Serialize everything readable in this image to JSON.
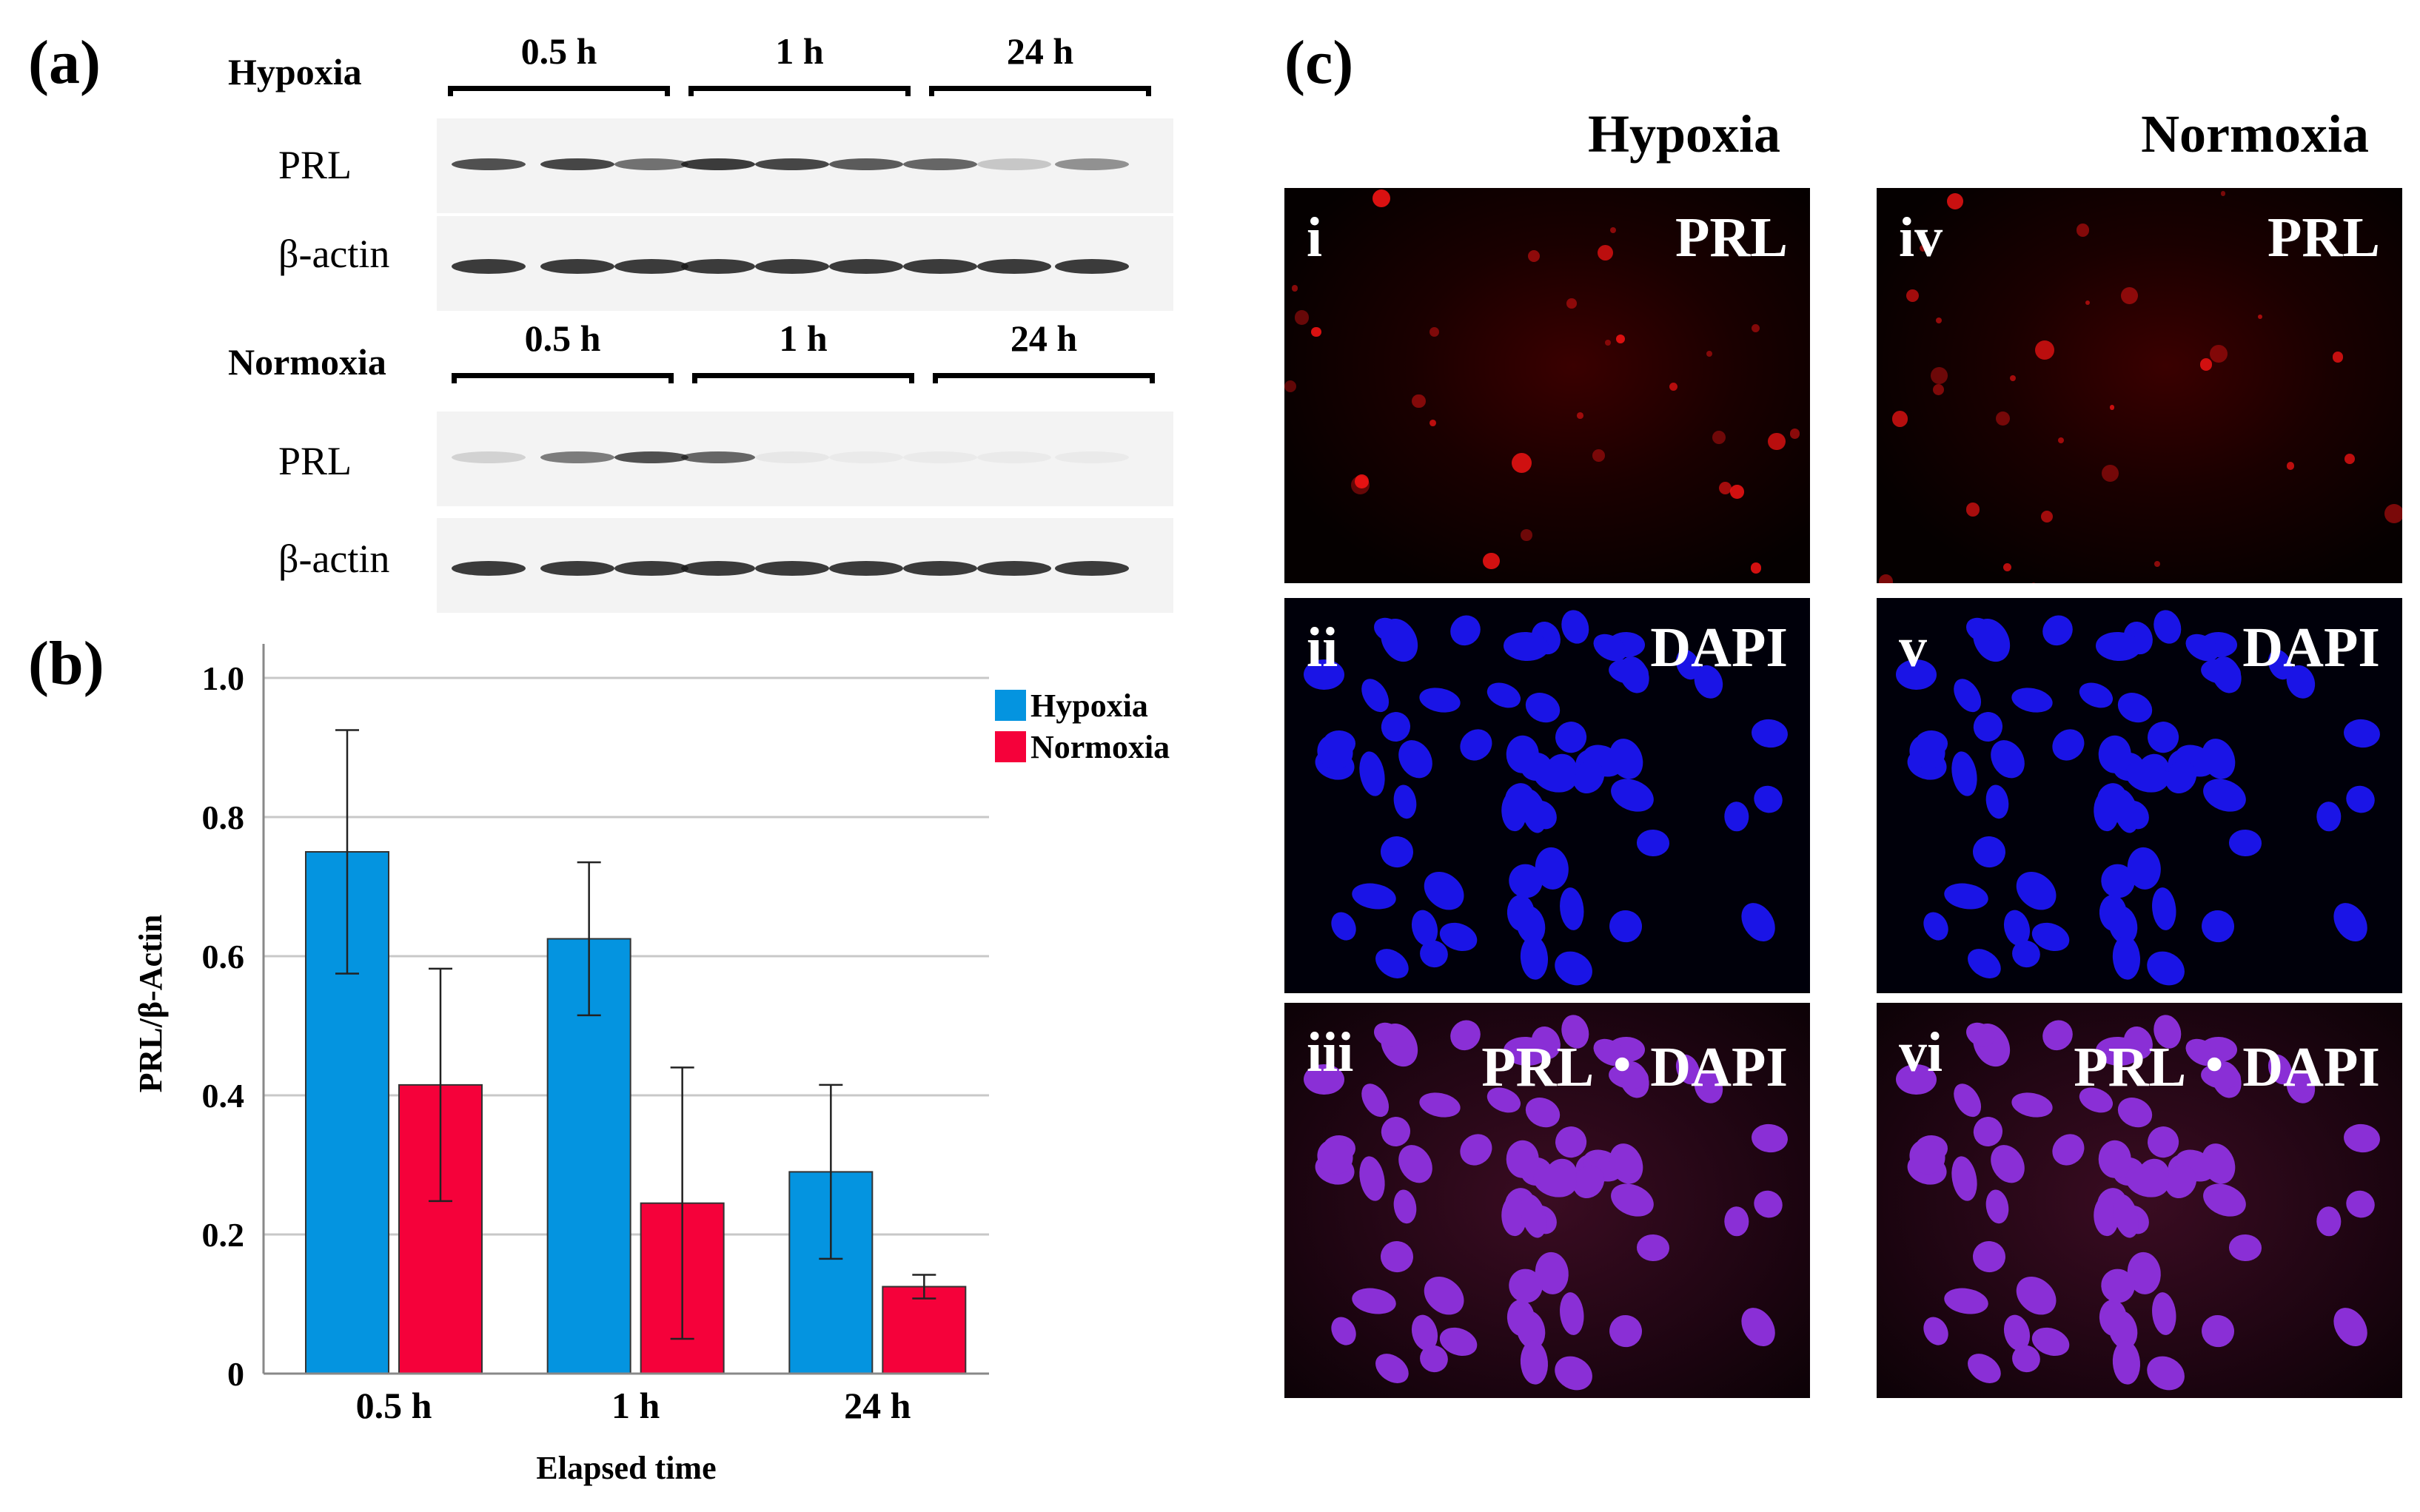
{
  "panel_a": {
    "label": "(a)",
    "hypoxia_label": "Hypoxia",
    "normoxia_label": "Normoxia",
    "time_groups": [
      "0.5 h",
      "1 h",
      "24 h"
    ],
    "row_labels": [
      "PRL",
      "β-actin"
    ],
    "hypoxia_prl_intensity": [
      0.75,
      0.8,
      0.6,
      0.85,
      0.8,
      0.7,
      0.65,
      0.2,
      0.45
    ],
    "normoxia_prl_intensity": [
      0.15,
      0.55,
      0.75,
      0.65,
      0.05,
      0.03,
      0.03,
      0.02,
      0.02
    ]
  },
  "panel_b": {
    "label": "(b)",
    "chart_data": {
      "type": "bar",
      "categories": [
        "0.5 h",
        "1 h",
        "24 h"
      ],
      "series": [
        {
          "name": "Hypoxia",
          "values": [
            0.75,
            0.625,
            0.29
          ],
          "error": [
            0.175,
            0.11,
            0.125
          ],
          "color": "#0494e0"
        },
        {
          "name": "Normoxia",
          "values": [
            0.415,
            0.245,
            0.125
          ],
          "error": [
            0.167,
            0.195,
            0.017
          ],
          "color": "#f5013a"
        }
      ],
      "xlabel": "Elapsed time",
      "ylabel": "PRL/β-Actin",
      "ylim": [
        0,
        1.0
      ],
      "yticks": [
        "0",
        "0.2",
        "0.4",
        "0.6",
        "0.8",
        "1.0"
      ],
      "grid": true,
      "legend": "top-right"
    }
  },
  "panel_c": {
    "label": "(c)",
    "col_titles": [
      "Hypoxia",
      "Normoxia"
    ],
    "images": [
      {
        "numeral": "i",
        "stain": "PRL"
      },
      {
        "numeral": "ii",
        "stain": "DAPI"
      },
      {
        "numeral": "iii",
        "stain": "PRL・DAPI"
      },
      {
        "numeral": "iv",
        "stain": "PRL"
      },
      {
        "numeral": "v",
        "stain": "DAPI"
      },
      {
        "numeral": "vi",
        "stain": "PRL・DAPI"
      }
    ]
  }
}
